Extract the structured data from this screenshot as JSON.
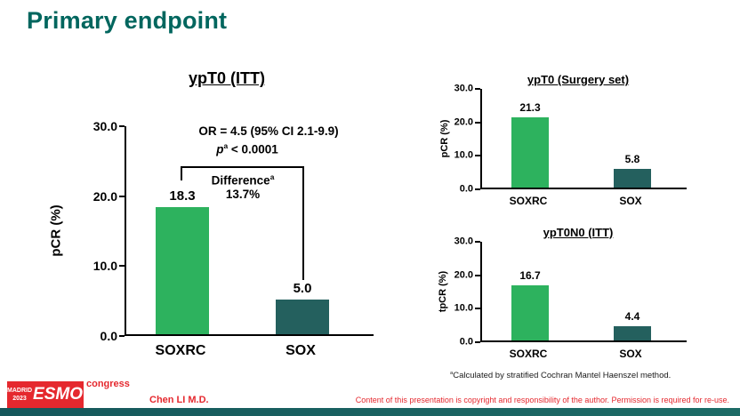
{
  "slide": {
    "title": "Primary endpoint",
    "footnote": {
      "sup": "a",
      "text": "Calculated by stratified Cochran Mantel Haenszel method."
    },
    "author": "Chen LI M.D.",
    "copyright": "Content of this presentation is copyright and responsibility of the author. Permission is required for re-use.",
    "logo": {
      "city": "MADRID",
      "year": "2023",
      "brand": "ESMO",
      "suffix": "congress"
    }
  },
  "colors": {
    "accent": "#00665E",
    "bar-green": "#2DB25E",
    "bar-teal": "#24605E",
    "red": "#E5282E",
    "footer": "#15575B"
  },
  "chart_data": [
    {
      "type": "bar",
      "title": "ypT0 (ITT)",
      "categories": [
        "SOXRC",
        "SOX"
      ],
      "values": [
        18.3,
        5.0
      ],
      "value_labels": [
        "18.3",
        "5.0"
      ],
      "ylabel": "pCR (%)",
      "ylim": [
        0,
        30
      ],
      "ytick_labels": [
        "30.0",
        "20.0",
        "10.0",
        "0.0"
      ],
      "series_colors": [
        "#2DB25E",
        "#24605E"
      ],
      "annotations": {
        "or_text": "OR = 4.5 (95% CI 2.1-9.9)",
        "p_italic": "p",
        "p_sup": "a",
        "p_rest": " < 0.0001",
        "diff_label": "Difference",
        "diff_sup": "a",
        "diff_value": "13.7%"
      }
    },
    {
      "type": "bar",
      "title": "ypT0 (Surgery set)",
      "categories": [
        "SOXRC",
        "SOX"
      ],
      "values": [
        21.3,
        5.8
      ],
      "value_labels": [
        "21.3",
        "5.8"
      ],
      "ylabel": "pCR (%)",
      "ylim": [
        0,
        30
      ],
      "ytick_labels": [
        "30.0",
        "20.0",
        "10.0",
        "0.0"
      ],
      "series_colors": [
        "#2DB25E",
        "#24605E"
      ]
    },
    {
      "type": "bar",
      "title": "ypT0N0 (ITT)",
      "categories": [
        "SOXRC",
        "SOX"
      ],
      "values": [
        16.7,
        4.4
      ],
      "value_labels": [
        "16.7",
        "4.4"
      ],
      "ylabel": "tpCR (%)",
      "ylim": [
        0,
        30
      ],
      "ytick_labels": [
        "30.0",
        "20.0",
        "10.0",
        "0.0"
      ],
      "series_colors": [
        "#2DB25E",
        "#24605E"
      ]
    }
  ]
}
